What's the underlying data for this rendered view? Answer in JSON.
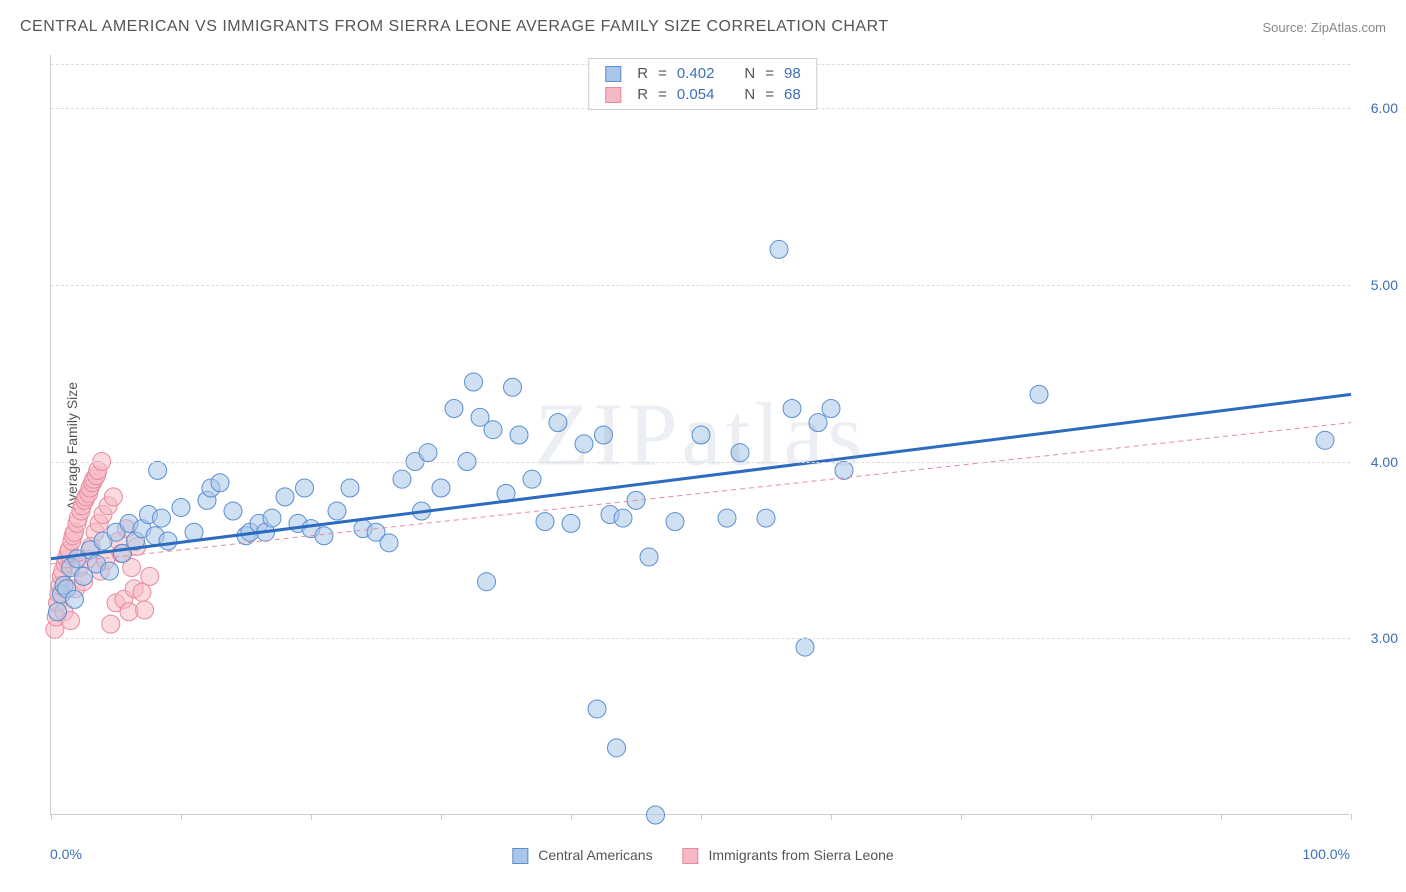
{
  "title": "CENTRAL AMERICAN VS IMMIGRANTS FROM SIERRA LEONE AVERAGE FAMILY SIZE CORRELATION CHART",
  "source": "Source: ZipAtlas.com",
  "watermark": "ZIPatlas",
  "ylabel": "Average Family Size",
  "xlabel_min": "0.0%",
  "xlabel_max": "100.0%",
  "chart": {
    "type": "scatter",
    "xlim": [
      0,
      100
    ],
    "ylim": [
      2.0,
      6.3
    ],
    "ytick_values": [
      3.0,
      4.0,
      5.0,
      6.0
    ],
    "ytick_labels": [
      "3.00",
      "4.00",
      "5.00",
      "6.00"
    ],
    "xtick_positions": [
      0,
      10,
      20,
      30,
      40,
      50,
      60,
      70,
      80,
      90,
      100
    ],
    "background_color": "#ffffff",
    "grid_color": "#dddddd",
    "axis_color": "#cccccc",
    "marker_radius": 9,
    "marker_opacity": 0.55,
    "marker_stroke_width": 1
  },
  "series1": {
    "name": "Central Americans",
    "color_fill": "#a9c6ea",
    "color_stroke": "#5a8fd0",
    "trend_color": "#2c6bc0",
    "trend_width": 3,
    "trend_dash": "none",
    "trend_start": [
      0,
      3.45
    ],
    "trend_end": [
      100,
      4.38
    ],
    "R": "0.402",
    "N": "98",
    "points": [
      [
        0.5,
        3.15
      ],
      [
        0.8,
        3.25
      ],
      [
        1.0,
        3.3
      ],
      [
        1.2,
        3.28
      ],
      [
        1.5,
        3.4
      ],
      [
        1.8,
        3.22
      ],
      [
        2.0,
        3.45
      ],
      [
        2.5,
        3.35
      ],
      [
        3.0,
        3.5
      ],
      [
        3.5,
        3.42
      ],
      [
        4.0,
        3.55
      ],
      [
        4.5,
        3.38
      ],
      [
        5.0,
        3.6
      ],
      [
        5.5,
        3.48
      ],
      [
        6.0,
        3.65
      ],
      [
        6.5,
        3.55
      ],
      [
        7.0,
        3.62
      ],
      [
        7.5,
        3.7
      ],
      [
        8.0,
        3.58
      ],
      [
        8.2,
        3.95
      ],
      [
        8.5,
        3.68
      ],
      [
        9.0,
        3.55
      ],
      [
        10.0,
        3.74
      ],
      [
        11.0,
        3.6
      ],
      [
        12.0,
        3.78
      ],
      [
        12.3,
        3.85
      ],
      [
        13.0,
        3.88
      ],
      [
        14.0,
        3.72
      ],
      [
        15.0,
        3.58
      ],
      [
        15.3,
        3.6
      ],
      [
        16.0,
        3.65
      ],
      [
        16.5,
        3.6
      ],
      [
        17.0,
        3.68
      ],
      [
        18.0,
        3.8
      ],
      [
        19.0,
        3.65
      ],
      [
        19.5,
        3.85
      ],
      [
        20.0,
        3.62
      ],
      [
        21.0,
        3.58
      ],
      [
        22.0,
        3.72
      ],
      [
        23.0,
        3.85
      ],
      [
        24.0,
        3.62
      ],
      [
        25.0,
        3.6
      ],
      [
        26.0,
        3.54
      ],
      [
        27.0,
        3.9
      ],
      [
        28.0,
        4.0
      ],
      [
        28.5,
        3.72
      ],
      [
        29.0,
        4.05
      ],
      [
        30.0,
        3.85
      ],
      [
        31.0,
        4.3
      ],
      [
        32.0,
        4.0
      ],
      [
        32.5,
        4.45
      ],
      [
        33.0,
        4.25
      ],
      [
        33.5,
        3.32
      ],
      [
        34.0,
        4.18
      ],
      [
        35.0,
        3.82
      ],
      [
        35.5,
        4.42
      ],
      [
        36.0,
        4.15
      ],
      [
        37.0,
        3.9
      ],
      [
        38.0,
        3.66
      ],
      [
        39.0,
        4.22
      ],
      [
        40.0,
        3.65
      ],
      [
        41.0,
        4.1
      ],
      [
        42.0,
        2.6
      ],
      [
        42.5,
        4.15
      ],
      [
        43.0,
        3.7
      ],
      [
        43.5,
        2.38
      ],
      [
        44.0,
        3.68
      ],
      [
        45.0,
        3.78
      ],
      [
        46.0,
        3.46
      ],
      [
        46.5,
        2.0
      ],
      [
        48.0,
        3.66
      ],
      [
        50.0,
        4.15
      ],
      [
        52.0,
        3.68
      ],
      [
        53.0,
        4.05
      ],
      [
        55.0,
        3.68
      ],
      [
        56.0,
        5.2
      ],
      [
        57.0,
        4.3
      ],
      [
        58.0,
        2.95
      ],
      [
        59.0,
        4.22
      ],
      [
        60.0,
        4.3
      ],
      [
        61.0,
        3.95
      ],
      [
        76.0,
        4.38
      ],
      [
        98.0,
        4.12
      ]
    ]
  },
  "series2": {
    "name": "Immigrants from Sierra Leone",
    "color_fill": "#f5b9c5",
    "color_stroke": "#e88a9e",
    "trend_color": "#e88a9e",
    "trend_width": 1,
    "trend_dash": "5,4",
    "trend_start": [
      0,
      3.42
    ],
    "trend_end": [
      100,
      4.22
    ],
    "R": "0.054",
    "N": "68",
    "points": [
      [
        0.3,
        3.05
      ],
      [
        0.4,
        3.12
      ],
      [
        0.5,
        3.2
      ],
      [
        0.6,
        3.25
      ],
      [
        0.7,
        3.3
      ],
      [
        0.8,
        3.35
      ],
      [
        0.9,
        3.38
      ],
      [
        1.0,
        3.15
      ],
      [
        1.1,
        3.42
      ],
      [
        1.2,
        3.45
      ],
      [
        1.3,
        3.48
      ],
      [
        1.4,
        3.5
      ],
      [
        1.5,
        3.1
      ],
      [
        1.6,
        3.55
      ],
      [
        1.7,
        3.58
      ],
      [
        1.8,
        3.6
      ],
      [
        1.9,
        3.28
      ],
      [
        2.0,
        3.65
      ],
      [
        2.1,
        3.68
      ],
      [
        2.2,
        3.4
      ],
      [
        2.3,
        3.72
      ],
      [
        2.4,
        3.75
      ],
      [
        2.5,
        3.32
      ],
      [
        2.6,
        3.78
      ],
      [
        2.7,
        3.8
      ],
      [
        2.8,
        3.45
      ],
      [
        2.9,
        3.82
      ],
      [
        3.0,
        3.85
      ],
      [
        3.1,
        3.52
      ],
      [
        3.2,
        3.88
      ],
      [
        3.3,
        3.9
      ],
      [
        3.4,
        3.6
      ],
      [
        3.5,
        3.92
      ],
      [
        3.6,
        3.95
      ],
      [
        3.7,
        3.65
      ],
      [
        3.8,
        3.38
      ],
      [
        3.9,
        4.0
      ],
      [
        4.0,
        3.7
      ],
      [
        4.2,
        3.44
      ],
      [
        4.4,
        3.75
      ],
      [
        4.6,
        3.08
      ],
      [
        4.8,
        3.8
      ],
      [
        5.0,
        3.2
      ],
      [
        5.2,
        3.55
      ],
      [
        5.4,
        3.48
      ],
      [
        5.6,
        3.22
      ],
      [
        5.8,
        3.62
      ],
      [
        6.0,
        3.15
      ],
      [
        6.2,
        3.4
      ],
      [
        6.4,
        3.28
      ],
      [
        6.6,
        3.52
      ],
      [
        7.0,
        3.26
      ],
      [
        7.2,
        3.16
      ],
      [
        7.6,
        3.35
      ]
    ]
  },
  "legend": {
    "series1_label": "Central Americans",
    "series2_label": "Immigrants from Sierra Leone"
  },
  "stats": {
    "r_label": "R",
    "n_label": "N",
    "eq": "="
  }
}
